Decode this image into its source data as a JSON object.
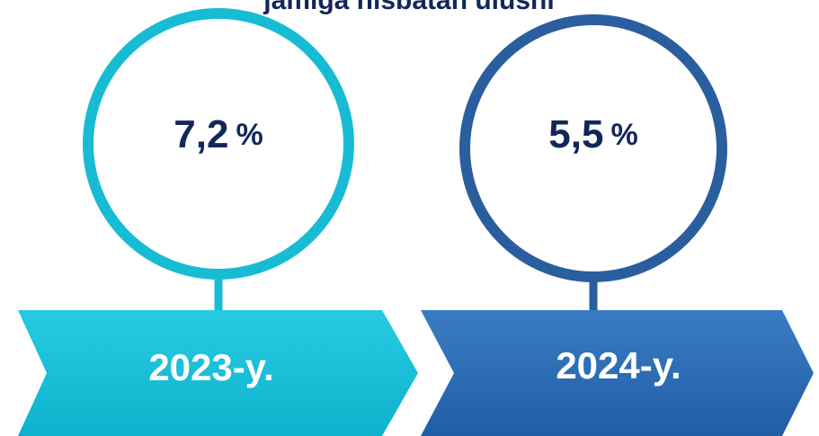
{
  "title": "jamiga nisbatan ulushi",
  "items": [
    {
      "value": "7,2",
      "unit": "%",
      "year": "2023-y."
    },
    {
      "value": "5,5",
      "unit": "%",
      "year": "2024-y."
    }
  ]
}
